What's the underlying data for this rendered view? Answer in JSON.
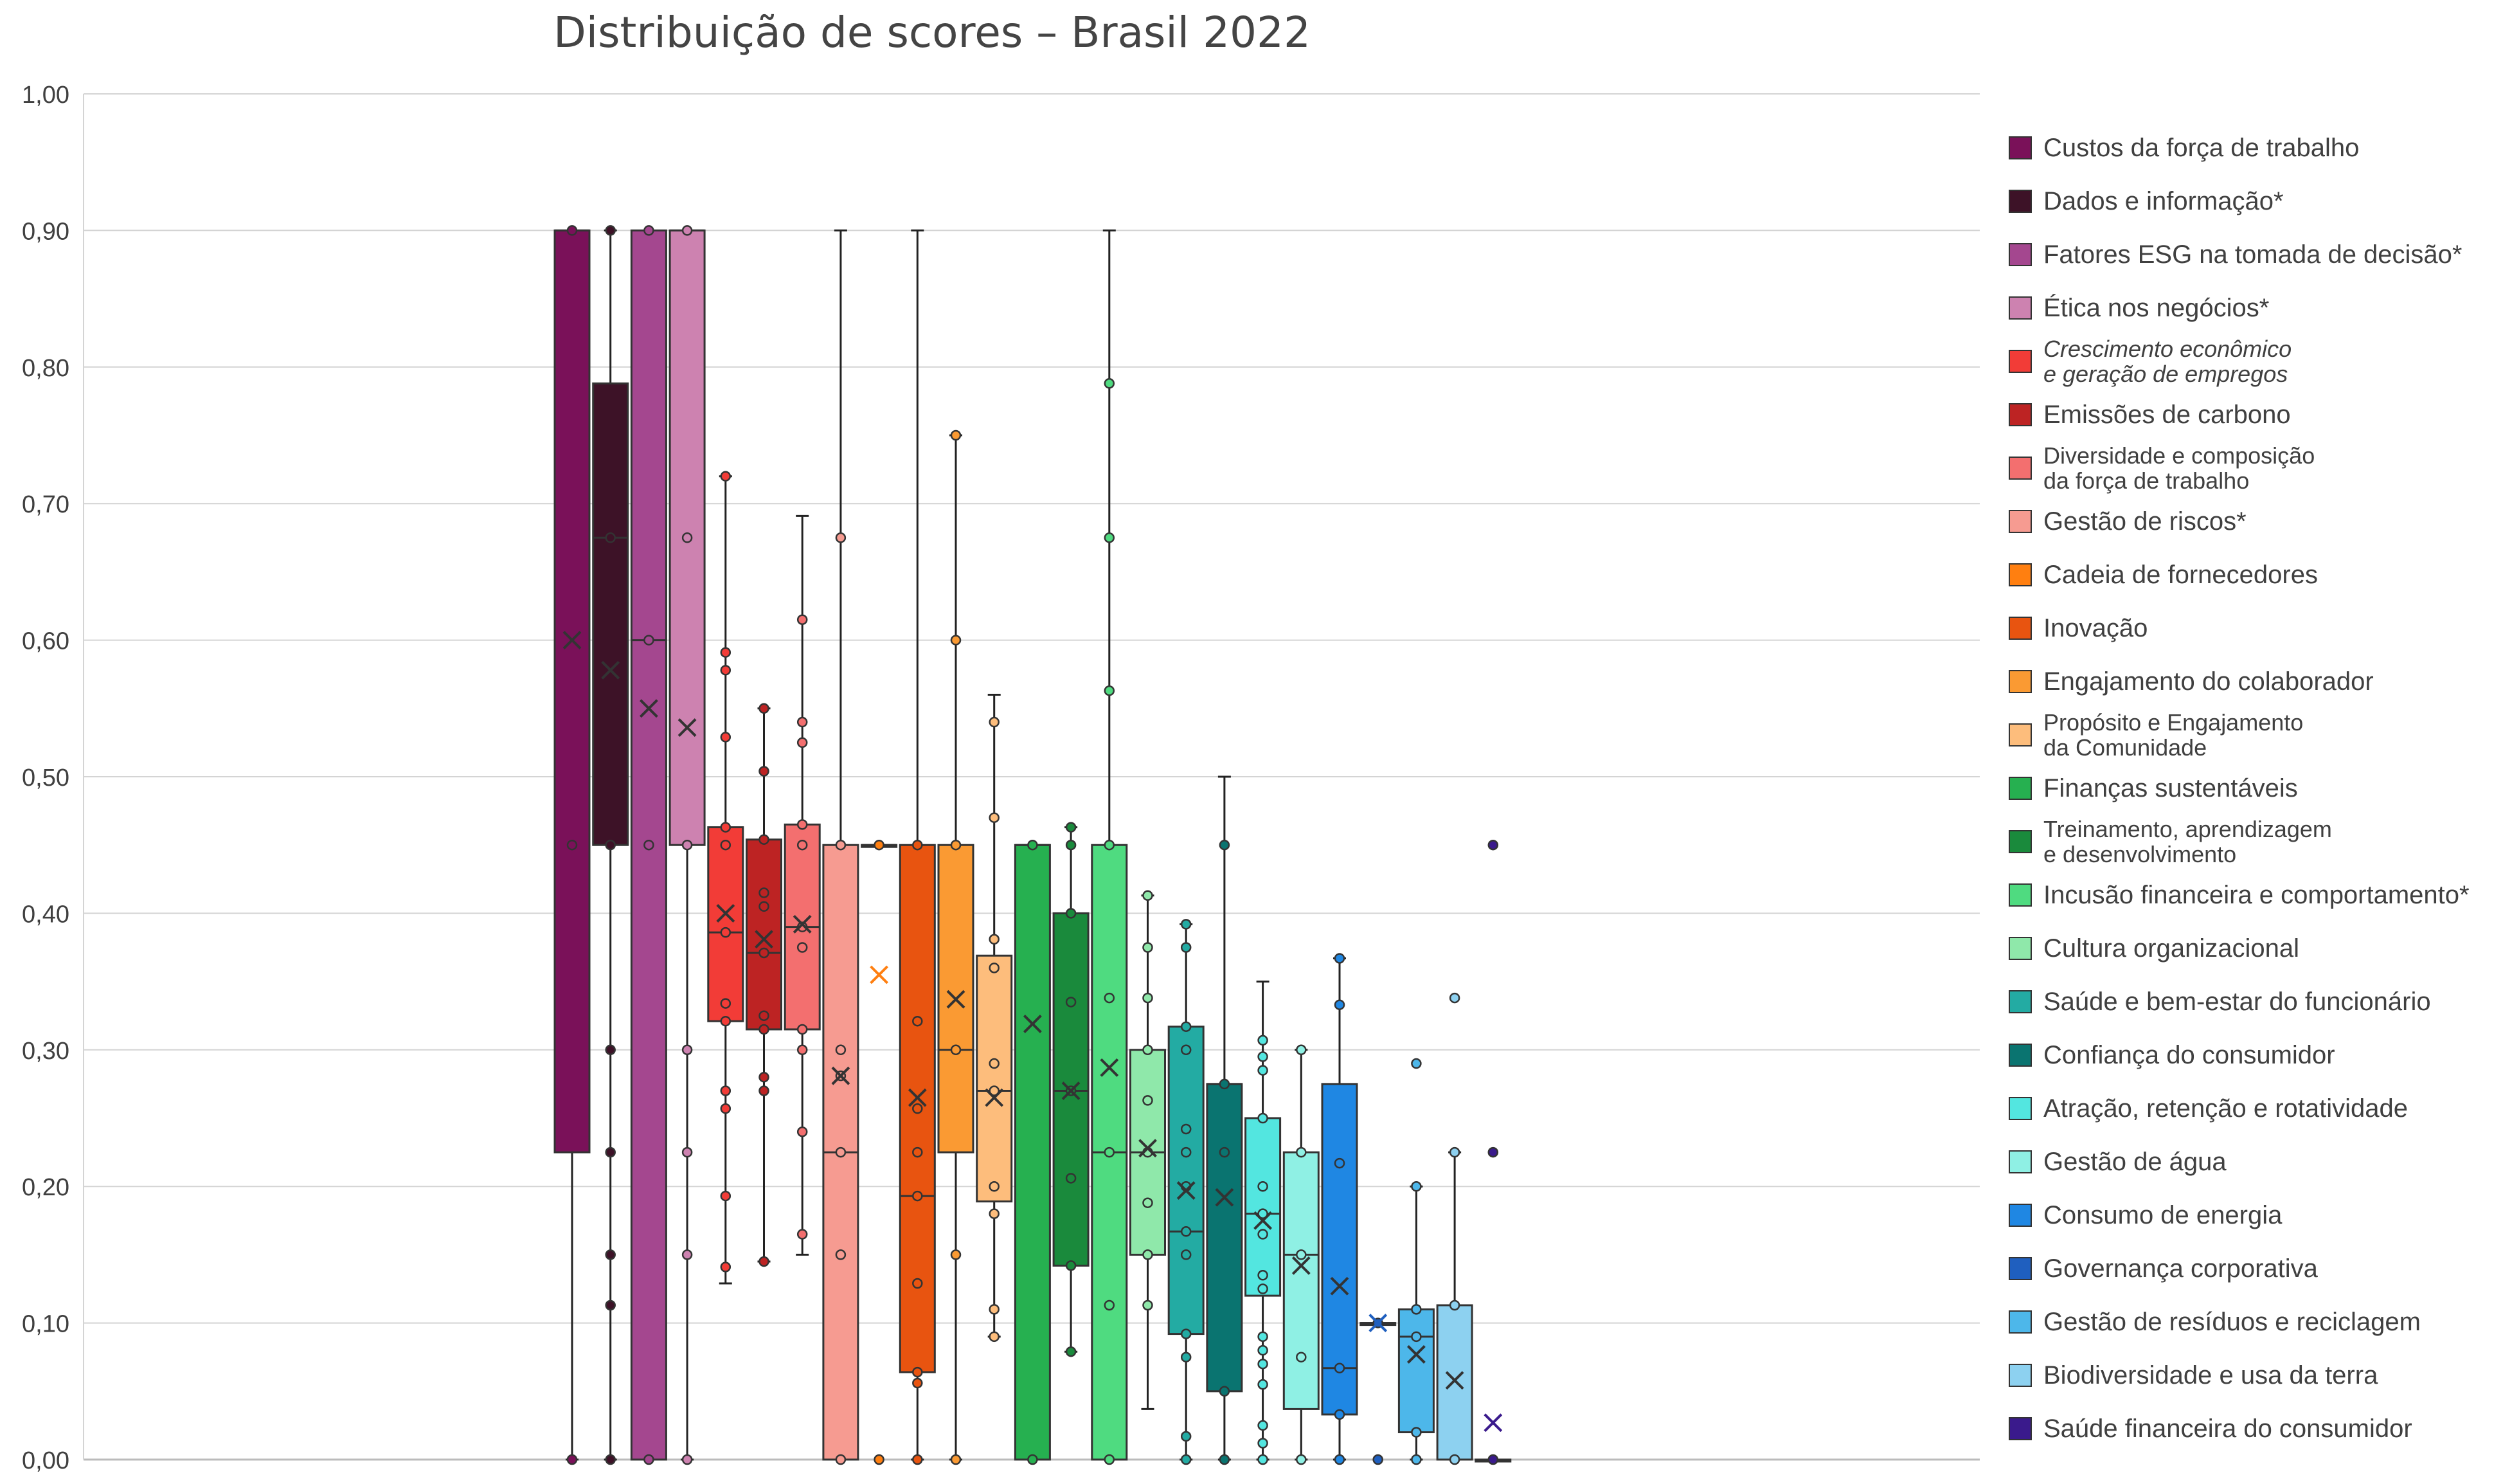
{
  "chart_data": {
    "type": "box",
    "title": "Distribuição de scores – Brasil 2022",
    "xlabel": "",
    "ylabel": "",
    "ylim": [
      0,
      1
    ],
    "y_ticks": [
      "0,00",
      "0,10",
      "0,20",
      "0,30",
      "0,40",
      "0,50",
      "0,60",
      "0,70",
      "0,80",
      "0,90",
      "1,00"
    ],
    "grid": true,
    "legend": "right",
    "series": [
      {
        "name": "Custos da força de trabalho",
        "color": "#7a1159",
        "min": 0.0,
        "q1": 0.225,
        "median": 0.9,
        "q3": 0.9,
        "max": 0.9,
        "mean": 0.6,
        "points": [
          0.9,
          0.45,
          0.0
        ]
      },
      {
        "name": "Dados e informação*",
        "color": "#3d1227",
        "min": 0.0,
        "q1": 0.45,
        "median": 0.675,
        "q3": 0.788,
        "max": 0.9,
        "mean": 0.578,
        "points": [
          0.9,
          0.675,
          0.45,
          0.3,
          0.225,
          0.15,
          0.113,
          0.0
        ]
      },
      {
        "name": "Fatores  ESG na tomada de decisão*",
        "color": "#a4478f",
        "min": 0.0,
        "q1": 0.0,
        "median": 0.6,
        "q3": 0.9,
        "max": 0.9,
        "mean": 0.55,
        "points": [
          0.9,
          0.6,
          0.45,
          0.0
        ]
      },
      {
        "name": "Ética nos negócios*",
        "color": "#cd82b0",
        "min": 0.0,
        "q1": 0.45,
        "median": 0.9,
        "q3": 0.9,
        "max": 0.9,
        "mean": 0.536,
        "points": [
          0.9,
          0.675,
          0.45,
          0.3,
          0.225,
          0.15,
          0.0
        ]
      },
      {
        "name": "Crescimento econômico\ne geração  de empregos",
        "color": "#f23c37",
        "min": 0.129,
        "q1": 0.321,
        "median": 0.386,
        "q3": 0.463,
        "max": 0.72,
        "mean": 0.4,
        "points": [
          0.72,
          0.591,
          0.578,
          0.529,
          0.463,
          0.45,
          0.386,
          0.334,
          0.321,
          0.27,
          0.257,
          0.193,
          0.141
        ]
      },
      {
        "name": "Emissões de carbono",
        "color": "#bd2323",
        "min": 0.145,
        "q1": 0.315,
        "median": 0.371,
        "q3": 0.454,
        "max": 0.55,
        "mean": 0.381,
        "points": [
          0.55,
          0.504,
          0.454,
          0.415,
          0.405,
          0.371,
          0.325,
          0.315,
          0.28,
          0.27,
          0.145
        ]
      },
      {
        "name": "Diversidade e composição\nda força de trabalho",
        "color": "#f36f6f",
        "min": 0.15,
        "q1": 0.315,
        "median": 0.39,
        "q3": 0.465,
        "max": 0.691,
        "mean": 0.392,
        "points": [
          0.615,
          0.54,
          0.525,
          0.465,
          0.45,
          0.39,
          0.375,
          0.315,
          0.3,
          0.24,
          0.165
        ]
      },
      {
        "name": "Gestão  de riscos*",
        "color": "#f69b91",
        "min": 0.0,
        "q1": 0.0,
        "median": 0.225,
        "q3": 0.45,
        "max": 0.9,
        "mean": 0.281,
        "points": [
          0.675,
          0.45,
          0.3,
          0.281,
          0.225,
          0.15,
          0.0
        ]
      },
      {
        "name": "Cadeia de fornecedores",
        "color": "#ff7f10",
        "min": 0.45,
        "q1": 0.45,
        "median": 0.45,
        "q3": 0.45,
        "max": 0.45,
        "mean": 0.355,
        "points": [
          0.45,
          0.0
        ]
      },
      {
        "name": "Inovação",
        "color": "#e85410",
        "min": 0.0,
        "q1": 0.064,
        "median": 0.193,
        "q3": 0.45,
        "max": 0.9,
        "mean": 0.265,
        "points": [
          0.45,
          0.321,
          0.257,
          0.225,
          0.193,
          0.129,
          0.064,
          0.056,
          0.0
        ]
      },
      {
        "name": "Engajamento do colaborador",
        "color": "#fa9a33",
        "min": 0.0,
        "q1": 0.225,
        "median": 0.3,
        "q3": 0.45,
        "max": 0.75,
        "mean": 0.337,
        "points": [
          0.75,
          0.6,
          0.45,
          0.3,
          0.15,
          0.0
        ]
      },
      {
        "name": "Propósito e Engajamento\nda Comunidade",
        "color": "#fdbd7c",
        "min": 0.09,
        "q1": 0.189,
        "median": 0.27,
        "q3": 0.369,
        "max": 0.56,
        "mean": 0.265,
        "points": [
          0.54,
          0.47,
          0.381,
          0.36,
          0.29,
          0.27,
          0.2,
          0.18,
          0.11,
          0.09
        ]
      },
      {
        "name": "Finanças sustentáveis",
        "color": "#26b050",
        "min": 0.0,
        "q1": 0.0,
        "median": 0.45,
        "q3": 0.45,
        "max": 0.45,
        "mean": 0.319,
        "points": [
          0.45,
          0.0
        ]
      },
      {
        "name": "Treinamento, aprendizagem\ne desenvolvimento",
        "color": "#1a8a3c",
        "min": 0.079,
        "q1": 0.142,
        "median": 0.27,
        "q3": 0.4,
        "max": 0.463,
        "mean": 0.27,
        "points": [
          0.463,
          0.45,
          0.4,
          0.335,
          0.27,
          0.206,
          0.142,
          0.079
        ]
      },
      {
        "name": "Incusão financeira e comportamento*",
        "color": "#4fdb80",
        "min": 0.0,
        "q1": 0.0,
        "median": 0.225,
        "q3": 0.45,
        "max": 0.9,
        "mean": 0.287,
        "points": [
          0.788,
          0.675,
          0.563,
          0.45,
          0.338,
          0.225,
          0.113,
          0.0
        ]
      },
      {
        "name": "Cultura organizacional",
        "color": "#8fe8aa",
        "min": 0.037,
        "q1": 0.15,
        "median": 0.225,
        "q3": 0.3,
        "max": 0.413,
        "mean": 0.228,
        "points": [
          0.413,
          0.375,
          0.338,
          0.3,
          0.263,
          0.225,
          0.188,
          0.15,
          0.113
        ]
      },
      {
        "name": "Saúde e bem-estar do funcionário",
        "color": "#23aba3",
        "min": 0.0,
        "q1": 0.092,
        "median": 0.167,
        "q3": 0.317,
        "max": 0.392,
        "mean": 0.197,
        "points": [
          0.392,
          0.375,
          0.317,
          0.3,
          0.242,
          0.225,
          0.2,
          0.167,
          0.15,
          0.092,
          0.075,
          0.017,
          0.0
        ]
      },
      {
        "name": "Confiança do consumidor",
        "color": "#0a7470",
        "min": 0.0,
        "q1": 0.05,
        "median": 0.275,
        "q3": 0.275,
        "max": 0.5,
        "mean": 0.192,
        "points": [
          0.45,
          0.275,
          0.225,
          0.05,
          0.0
        ]
      },
      {
        "name": "Atração, retenção e rotatividade",
        "color": "#53e6e0",
        "min": 0.0,
        "q1": 0.12,
        "median": 0.18,
        "q3": 0.25,
        "max": 0.35,
        "mean": 0.175,
        "points": [
          0.307,
          0.295,
          0.285,
          0.25,
          0.2,
          0.18,
          0.165,
          0.135,
          0.125,
          0.09,
          0.08,
          0.07,
          0.055,
          0.025,
          0.012,
          0.0
        ]
      },
      {
        "name": "Gestão de água",
        "color": "#8ff0e4",
        "min": 0.0,
        "q1": 0.037,
        "median": 0.15,
        "q3": 0.225,
        "max": 0.3,
        "mean": 0.142,
        "points": [
          0.3,
          0.225,
          0.15,
          0.075,
          0.0
        ]
      },
      {
        "name": "Consumo de energia",
        "color": "#1f87e3",
        "min": 0.0,
        "q1": 0.033,
        "median": 0.067,
        "q3": 0.275,
        "max": 0.367,
        "mean": 0.127,
        "points": [
          0.367,
          0.333,
          0.217,
          0.067,
          0.033,
          0.0
        ]
      },
      {
        "name": "Governança corporativa",
        "color": "#1f5fbf",
        "min": 0.1,
        "q1": 0.1,
        "median": 0.1,
        "q3": 0.1,
        "max": 0.1,
        "mean": 0.1,
        "points": [
          0.1,
          0.0
        ]
      },
      {
        "name": "Gestão de resíduos e reciclagem",
        "color": "#4db7ea",
        "min": 0.0,
        "q1": 0.02,
        "median": 0.09,
        "q3": 0.11,
        "max": 0.2,
        "mean": 0.077,
        "points": [
          0.29,
          0.2,
          0.11,
          0.09,
          0.02,
          0.0
        ]
      },
      {
        "name": "Biodiversidade e usa da terra",
        "color": "#8dd1f0",
        "min": 0.0,
        "q1": 0.0,
        "median": 0.0,
        "q3": 0.113,
        "max": 0.225,
        "mean": 0.058,
        "points": [
          0.338,
          0.225,
          0.113,
          0.0
        ]
      },
      {
        "name": "Saúde financeira do consumidor",
        "color": "#3a1a8c",
        "min": 0.0,
        "q1": 0.0,
        "median": 0.0,
        "q3": 0.0,
        "max": 0.0,
        "mean": 0.027,
        "points": [
          0.45,
          0.225,
          0.0
        ]
      }
    ]
  }
}
